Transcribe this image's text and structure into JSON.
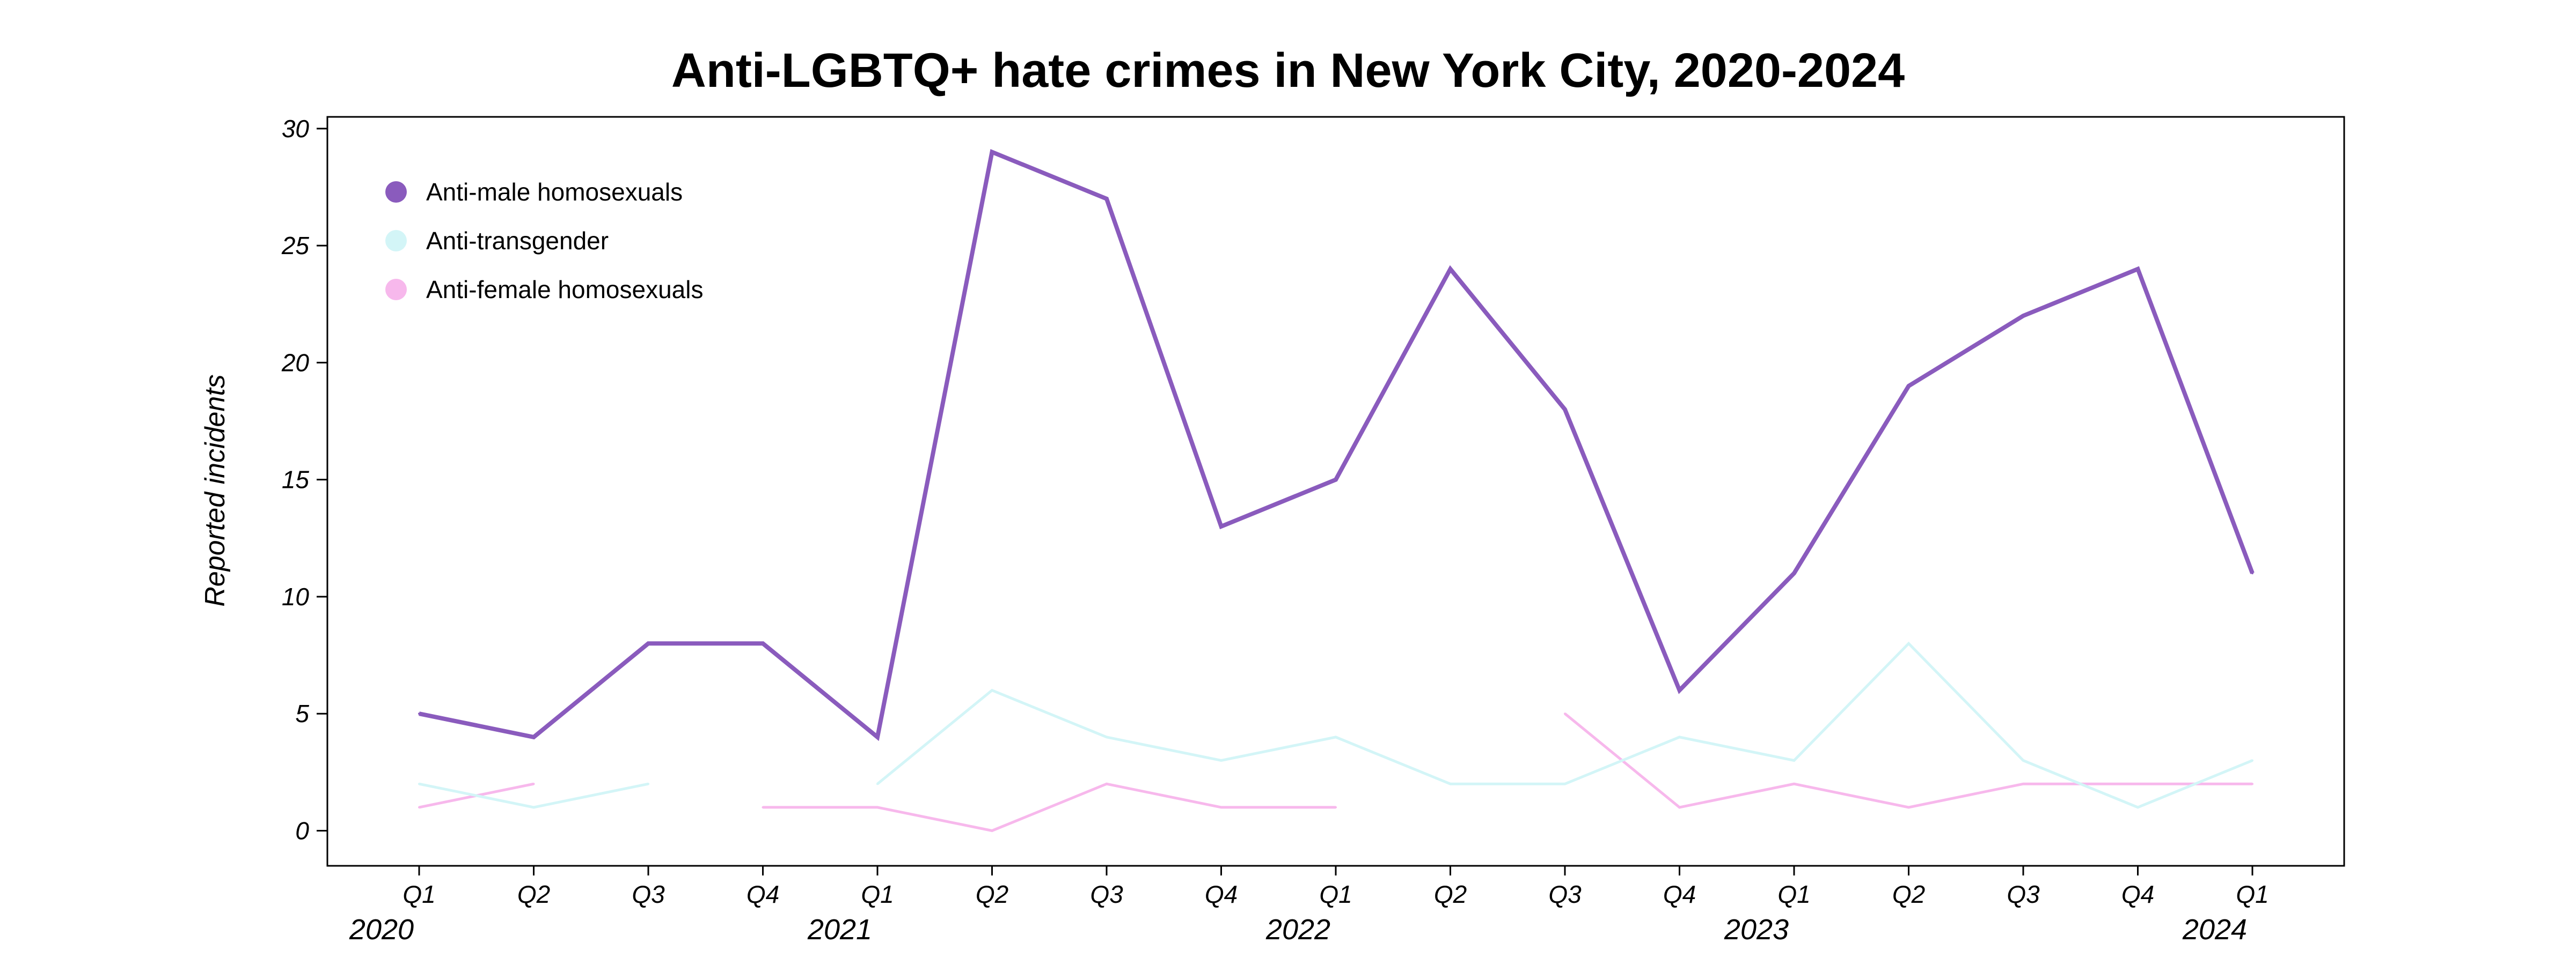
{
  "chart_data": {
    "type": "line",
    "title": "Anti-LGBTQ+ hate crimes in New York City, 2020-2024",
    "xlabel": "",
    "ylabel": "Reported incidents",
    "ylim": [
      -1.5,
      30.5
    ],
    "yticks": [
      0,
      5,
      10,
      15,
      20,
      25,
      30
    ],
    "grid": false,
    "legend_position": "top-left",
    "categories": [
      "Q1",
      "Q2",
      "Q3",
      "Q4",
      "Q1",
      "Q2",
      "Q3",
      "Q4",
      "Q1",
      "Q2",
      "Q3",
      "Q4",
      "Q1",
      "Q2",
      "Q3",
      "Q4",
      "Q1"
    ],
    "year_labels": [
      {
        "text": "2020",
        "index": 0
      },
      {
        "text": "2021",
        "index": 4
      },
      {
        "text": "2022",
        "index": 8
      },
      {
        "text": "2023",
        "index": 12
      },
      {
        "text": "2024",
        "index": 16
      }
    ],
    "series": [
      {
        "name": "Anti-male homosexuals",
        "color": "#8a5bbd",
        "values": [
          5,
          4,
          8,
          8,
          4,
          29,
          27,
          13,
          15,
          24,
          18,
          6,
          11,
          19,
          22,
          24,
          11
        ]
      },
      {
        "name": "Anti-transgender",
        "color": "#d3f5f7",
        "values": [
          2,
          1,
          2,
          null,
          2,
          6,
          4,
          3,
          4,
          2,
          2,
          4,
          3,
          8,
          3,
          1,
          3
        ]
      },
      {
        "name": "Anti-female homosexuals",
        "color": "#f7b8ec",
        "values": [
          1,
          2,
          null,
          1,
          1,
          0,
          2,
          1,
          1,
          null,
          5,
          1,
          2,
          1,
          2,
          2,
          2
        ]
      }
    ]
  }
}
